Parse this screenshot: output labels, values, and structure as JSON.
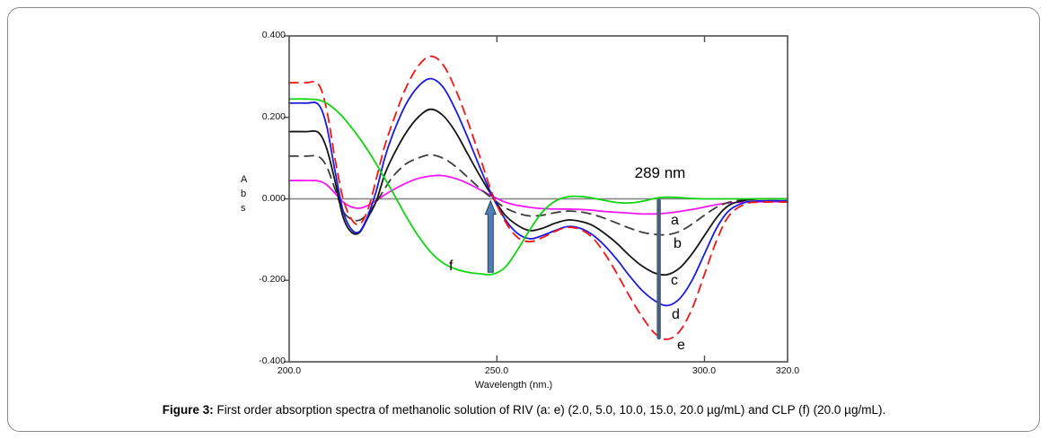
{
  "figure": {
    "caption_bold": "Figure 3:",
    "caption_text": "First order absorption spectra of methanolic solution of RIV (a: e) (2.0, 5.0, 10.0, 15.0, 20.0 µg/mL) and CLP (f) (20.0 µg/mL)."
  },
  "axes": {
    "y_label": "A\nb\ns",
    "x_label": "Wavelength (nm.)",
    "y_ticks": [
      "0.400",
      "0.200",
      "0.000",
      "-0.200",
      "-0.400"
    ],
    "x_ticks": [
      "200.0",
      "250.0",
      "300.0",
      "320.0"
    ]
  },
  "annotations": {
    "peak_label": "289 nm",
    "curve_labels": {
      "a": "a",
      "b": "b",
      "c": "c",
      "d": "d",
      "e": "e",
      "f": "f"
    }
  },
  "colors": {
    "curve_a_magenta": "#f716f7",
    "curve_b_gray_dashed": "#3d3d3d",
    "curve_c_black": "#141414",
    "curve_d_blue": "#1b1be0",
    "curve_e_red_dashed": "#f81414",
    "curve_f_green": "#0fd60f",
    "axis": "#4f4f4f",
    "zero_line": "#808080",
    "arrow_fill": "#4e7fb0",
    "arrow_stroke": "#24425f",
    "vline": "#456078"
  },
  "chart_data": {
    "type": "line",
    "title": "",
    "xlabel": "Wavelength (nm.)",
    "ylabel": "Abs",
    "xlim": [
      200,
      320
    ],
    "ylim": [
      -0.4,
      0.4
    ],
    "x_tick_values": [
      200,
      250,
      300,
      320
    ],
    "y_tick_values": [
      0.4,
      0.2,
      0.0,
      -0.2,
      -0.4
    ],
    "grid": false,
    "legend": "none",
    "x": [
      200,
      204,
      207,
      209,
      211,
      213,
      215,
      217,
      219,
      221,
      223,
      225,
      228,
      231,
      234,
      237,
      240,
      243,
      246,
      249,
      252,
      255,
      258,
      261,
      264,
      267,
      270,
      273,
      276,
      279,
      282,
      285,
      288,
      291,
      294,
      297,
      300,
      303,
      306,
      310,
      314,
      320
    ],
    "series": [
      {
        "id": "a",
        "name": "a: RIV 2.0 µg/mL",
        "color": "#f716f7",
        "style": "solid",
        "values": [
          0.045,
          0.045,
          0.044,
          0.035,
          0.014,
          -0.008,
          -0.02,
          -0.023,
          -0.016,
          -0.004,
          0.01,
          0.022,
          0.038,
          0.05,
          0.056,
          0.057,
          0.05,
          0.038,
          0.022,
          0.006,
          -0.008,
          -0.016,
          -0.021,
          -0.024,
          -0.025,
          -0.025,
          -0.026,
          -0.028,
          -0.031,
          -0.033,
          -0.035,
          -0.037,
          -0.037,
          -0.035,
          -0.031,
          -0.026,
          -0.02,
          -0.014,
          -0.01,
          -0.008,
          -0.007,
          -0.007
        ]
      },
      {
        "id": "b",
        "name": "b: RIV 5.0 µg/mL",
        "color": "#3d3d3d",
        "style": "dashed",
        "values": [
          0.105,
          0.105,
          0.104,
          0.08,
          0.025,
          -0.03,
          -0.05,
          -0.052,
          -0.035,
          -0.008,
          0.025,
          0.055,
          0.085,
          0.1,
          0.108,
          0.1,
          0.08,
          0.053,
          0.025,
          0.0,
          -0.022,
          -0.035,
          -0.042,
          -0.04,
          -0.034,
          -0.03,
          -0.032,
          -0.038,
          -0.048,
          -0.06,
          -0.072,
          -0.082,
          -0.087,
          -0.088,
          -0.08,
          -0.062,
          -0.04,
          -0.02,
          -0.008,
          -0.002,
          0.0,
          0.0
        ]
      },
      {
        "id": "c",
        "name": "c: RIV 10.0 µg/mL",
        "color": "#141414",
        "style": "solid",
        "values": [
          0.165,
          0.165,
          0.163,
          0.125,
          0.045,
          -0.045,
          -0.082,
          -0.082,
          -0.045,
          -0.005,
          0.06,
          0.105,
          0.16,
          0.2,
          0.22,
          0.205,
          0.165,
          0.11,
          0.055,
          0.005,
          -0.04,
          -0.065,
          -0.078,
          -0.072,
          -0.06,
          -0.052,
          -0.055,
          -0.065,
          -0.085,
          -0.11,
          -0.14,
          -0.165,
          -0.182,
          -0.186,
          -0.17,
          -0.135,
          -0.09,
          -0.045,
          -0.015,
          -0.003,
          0.0,
          0.0
        ]
      },
      {
        "id": "d",
        "name": "d: RIV 15.0 µg/mL",
        "color": "#1b1be0",
        "style": "solid",
        "values": [
          0.235,
          0.235,
          0.232,
          0.18,
          0.07,
          -0.03,
          -0.075,
          -0.08,
          -0.04,
          0.02,
          0.1,
          0.16,
          0.23,
          0.275,
          0.295,
          0.275,
          0.22,
          0.15,
          0.075,
          0.005,
          -0.05,
          -0.085,
          -0.098,
          -0.09,
          -0.078,
          -0.068,
          -0.072,
          -0.088,
          -0.115,
          -0.15,
          -0.19,
          -0.225,
          -0.25,
          -0.262,
          -0.245,
          -0.2,
          -0.135,
          -0.07,
          -0.028,
          -0.008,
          -0.005,
          -0.005
        ]
      },
      {
        "id": "e",
        "name": "e: RIV 20.0 µg/mL",
        "color": "#f81414",
        "style": "dashed",
        "values": [
          0.285,
          0.285,
          0.282,
          0.22,
          0.1,
          0.0,
          -0.05,
          -0.062,
          -0.025,
          0.05,
          0.13,
          0.19,
          0.27,
          0.325,
          0.35,
          0.33,
          0.27,
          0.19,
          0.1,
          0.01,
          -0.055,
          -0.095,
          -0.105,
          -0.095,
          -0.08,
          -0.07,
          -0.075,
          -0.095,
          -0.135,
          -0.185,
          -0.24,
          -0.29,
          -0.33,
          -0.345,
          -0.325,
          -0.27,
          -0.185,
          -0.1,
          -0.04,
          -0.012,
          -0.008,
          -0.008
        ]
      },
      {
        "id": "f",
        "name": "f: CLP 20.0 µg/mL",
        "color": "#0fd60f",
        "style": "solid",
        "values": [
          0.245,
          0.245,
          0.243,
          0.235,
          0.22,
          0.2,
          0.175,
          0.148,
          0.118,
          0.085,
          0.05,
          0.015,
          -0.04,
          -0.09,
          -0.13,
          -0.157,
          -0.172,
          -0.18,
          -0.184,
          -0.185,
          -0.168,
          -0.125,
          -0.075,
          -0.032,
          -0.006,
          0.005,
          0.006,
          0.002,
          -0.004,
          -0.009,
          -0.01,
          -0.006,
          0.001,
          0.004,
          0.003,
          0.001,
          0.0,
          0.0,
          0.0,
          0.0,
          0.0,
          0.0
        ]
      }
    ],
    "annotations": [
      {
        "type": "arrow-up",
        "x_nm": 248.5,
        "y_from": -0.18,
        "y_to": -0.005
      },
      {
        "type": "vline",
        "x_nm": 289,
        "y_from": 0.0,
        "y_to": -0.345
      },
      {
        "type": "text",
        "label": "289 nm",
        "x_nm": 289,
        "y": 0.055
      }
    ]
  }
}
